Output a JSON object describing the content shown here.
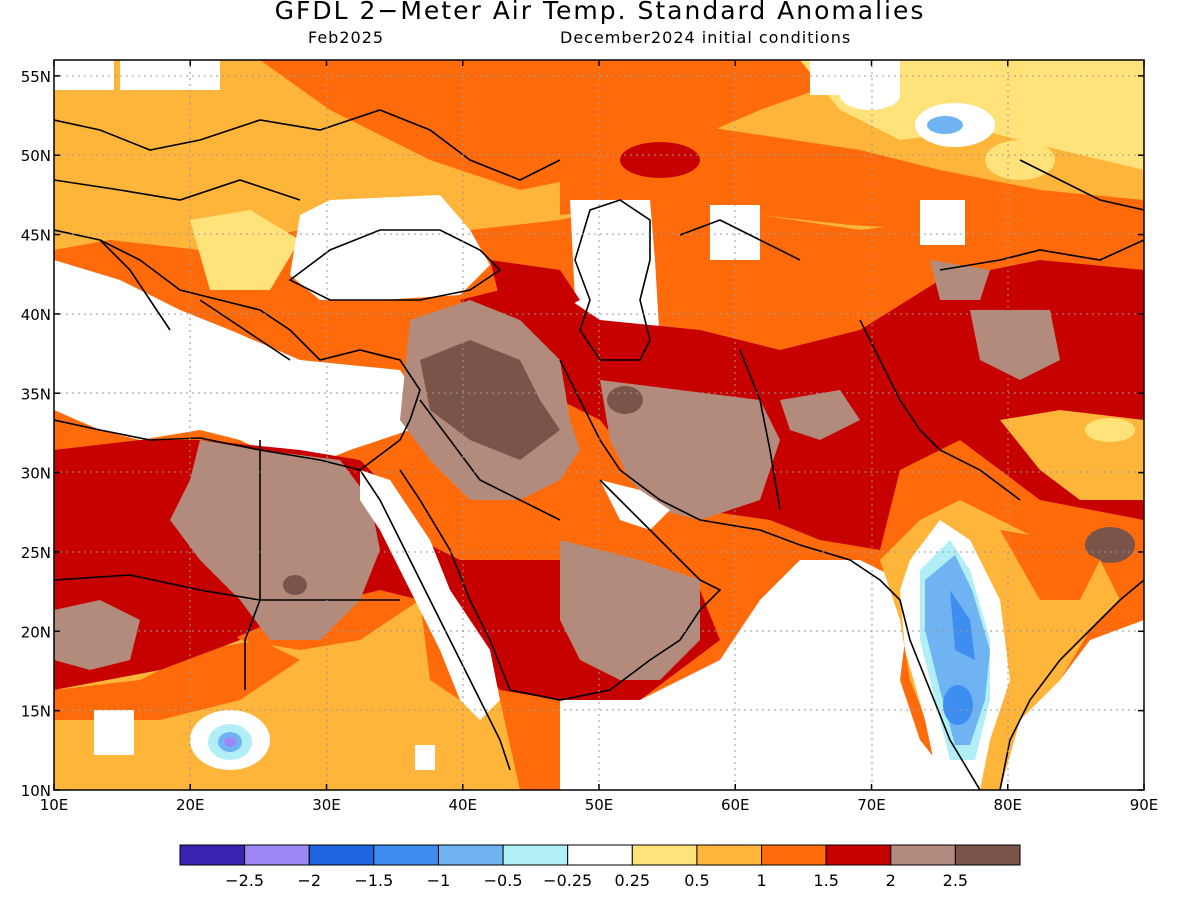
{
  "title": "GFDL 2−Meter Air Temp. Standard Anomalies",
  "subtitle_left": "Feb2025",
  "subtitle_right": "December2024 initial conditions",
  "map": {
    "lon_range": [
      10,
      90
    ],
    "lat_range": [
      10,
      56
    ],
    "x_ticks": [
      "10E",
      "20E",
      "30E",
      "40E",
      "50E",
      "60E",
      "70E",
      "80E",
      "90E"
    ],
    "y_ticks": [
      "10N",
      "15N",
      "20N",
      "25N",
      "30N",
      "35N",
      "40N",
      "45N",
      "50N",
      "55N"
    ],
    "gridlines": "dotted"
  },
  "colorbar": {
    "colors": [
      "#3a23b3",
      "#9d87f5",
      "#1e63df",
      "#3d8ef0",
      "#6fb3f2",
      "#b1eef5",
      "#ffffff",
      "#ffe27a",
      "#ffb43a",
      "#ff6a0a",
      "#c70000",
      "#b38b7c",
      "#7a5448"
    ],
    "labels": [
      "−2.5",
      "−2",
      "−1.5",
      "−1",
      "−0.5",
      "−0.25",
      "0.25",
      "0.5",
      "1",
      "1.5",
      "2",
      "2.5"
    ]
  }
}
